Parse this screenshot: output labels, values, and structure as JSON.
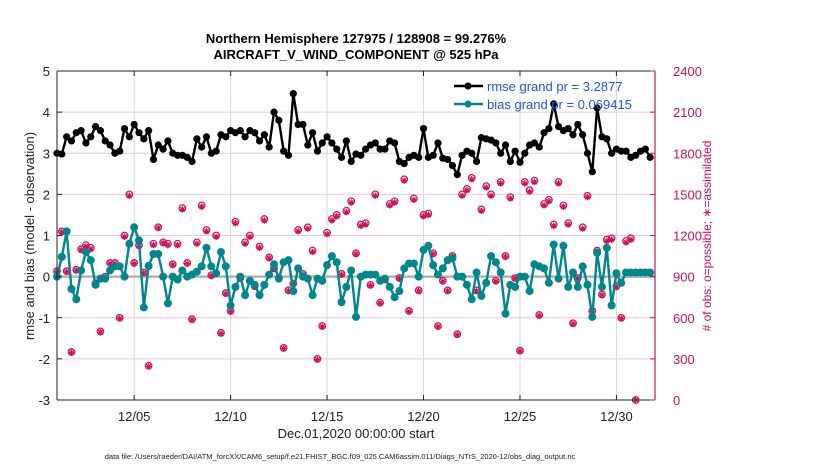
{
  "chart_data": {
    "type": "line",
    "title": "Northern Hemisphere 127975 / 128908 = 99.276%",
    "subtitle": "AIRCRAFT_V_WIND_COMPONENT @ 525 hPa",
    "xlabel": "Dec.01,2020 00:00:00 start",
    "ylabel_left": "rmse and bias (model - observation)",
    "ylabel_right": "# of obs: o=possible; ∗=assimilated",
    "footer": "data file: /Users/raeder/DAI/ATM_forcXX/CAM6_setup/f.e21.FHIST_BGC.f09_025.CAM6assim.011/Diags_NTrS_2020-12/obs_diag_output.nc",
    "x_unit": "days since Dec.01,2020 00:00",
    "x_step_days": 0.25,
    "x_start_days": 0.0,
    "xlim": [
      0.0,
      31.0
    ],
    "x_ticks": [
      {
        "value": 4,
        "label": "12/05"
      },
      {
        "value": 9,
        "label": "12/10"
      },
      {
        "value": 14,
        "label": "12/15"
      },
      {
        "value": 19,
        "label": "12/20"
      },
      {
        "value": 24,
        "label": "12/25"
      },
      {
        "value": 29,
        "label": "12/30"
      }
    ],
    "ylim_left": [
      -3,
      5
    ],
    "y_ticks_left": [
      "-3",
      "-2",
      "-1",
      "0",
      "1",
      "2",
      "3",
      "4",
      "5"
    ],
    "ylim_right": [
      0,
      2400
    ],
    "y_ticks_right": [
      "0",
      "300",
      "600",
      "900",
      "1200",
      "1500",
      "1800",
      "2100",
      "2400"
    ],
    "grid": true,
    "legend_placement": "top-right",
    "legend": [
      {
        "name": "rmse grand pr = 3.2877",
        "color": "#000000"
      },
      {
        "name": "bias grand pr = 0.069415",
        "color": "#00868b"
      }
    ],
    "colors": {
      "rmse": "#000000",
      "bias": "#00868b",
      "obs": "#d0105a",
      "zero_line": "#b3b3b3",
      "grid_vertical": "#d9d9d9",
      "grid_horizontal": "#f2c6d6",
      "legend_text": "#1a55e8"
    },
    "series": [
      {
        "name": "rmse",
        "axis": "left",
        "values": [
          3.0,
          2.98,
          3.4,
          3.3,
          3.5,
          3.55,
          3.25,
          3.4,
          3.65,
          3.55,
          3.3,
          3.2,
          3.0,
          3.05,
          3.6,
          3.4,
          3.7,
          3.5,
          3.35,
          3.55,
          2.85,
          3.2,
          3.1,
          3.3,
          3.0,
          2.95,
          2.95,
          2.9,
          2.8,
          3.35,
          3.15,
          3.4,
          3.0,
          3.05,
          3.45,
          3.4,
          3.55,
          3.5,
          3.55,
          3.4,
          3.55,
          3.5,
          3.3,
          3.45,
          3.15,
          4.0,
          3.8,
          3.05,
          2.95,
          4.45,
          3.7,
          3.7,
          3.2,
          3.5,
          3.05,
          3.25,
          3.4,
          3.25,
          3.1,
          2.9,
          3.3,
          2.8,
          2.98,
          2.95,
          3.1,
          3.2,
          3.25,
          3.1,
          3.1,
          3.3,
          3.25,
          2.8,
          2.75,
          2.9,
          2.95,
          2.9,
          3.6,
          2.9,
          2.95,
          3.25,
          2.88,
          2.85,
          2.7,
          2.48,
          2.95,
          3.05,
          3.0,
          2.8,
          3.38,
          3.35,
          3.32,
          3.25,
          3.0,
          3.2,
          2.8,
          3.05,
          2.78,
          3.0,
          3.2,
          3.25,
          3.15,
          3.5,
          3.6,
          4.2,
          3.65,
          3.55,
          3.6,
          3.45,
          3.7,
          3.45,
          3.0,
          2.55,
          4.1,
          3.4,
          3.35,
          3.0,
          3.1,
          3.05,
          3.05,
          2.9,
          2.95,
          3.05,
          3.1,
          2.9
        ]
      },
      {
        "name": "bias",
        "axis": "left",
        "values": [
          0.0,
          0.48,
          1.1,
          -0.3,
          -0.55,
          0.15,
          0.6,
          0.4,
          -0.2,
          -0.05,
          -0.05,
          0.15,
          0.25,
          0.25,
          0.0,
          0.8,
          1.2,
          0.88,
          -0.75,
          0.26,
          0.55,
          0.55,
          0.0,
          -0.65,
          0.0,
          -0.07,
          0.15,
          0.0,
          0.05,
          0.12,
          0.25,
          0.7,
          0.25,
          0.08,
          0.6,
          0.25,
          -0.7,
          -0.25,
          0.0,
          -0.45,
          -0.1,
          -0.2,
          -0.45,
          -0.2,
          0.05,
          0.3,
          -0.05,
          0.35,
          0.4,
          -0.35,
          0.2,
          0.0,
          -0.05,
          -0.45,
          -0.05,
          -0.1,
          0.28,
          0.5,
          0.35,
          -0.62,
          -0.25,
          0.15,
          -0.98,
          0.0,
          0.05,
          0.05,
          0.05,
          -0.1,
          -0.05,
          -0.25,
          -0.5,
          -0.35,
          0.2,
          0.32,
          0.32,
          0.0,
          0.65,
          0.75,
          0.28,
          0.05,
          0.2,
          0.4,
          0.45,
          0.0,
          0.0,
          -0.2,
          -0.55,
          0.1,
          -0.47,
          -0.15,
          0.5,
          0.35,
          0.1,
          -0.9,
          -0.2,
          -0.25,
          0.0,
          0.0,
          -0.35,
          0.3,
          0.25,
          0.2,
          -0.15,
          0.78,
          -0.05,
          0.75,
          -0.25,
          0.1,
          -0.25,
          0.25,
          -0.2,
          -0.98,
          0.58,
          -0.25,
          0.7,
          -0.7,
          0.08,
          -0.15,
          0.1,
          0.1,
          0.1,
          0.1,
          0.1,
          0.1
        ]
      }
    ],
    "obs_possible": {
      "axis": "right",
      "values": [
        940,
        1230,
        940,
        350,
        950,
        1100,
        1130,
        1110,
        850,
        500,
        900,
        1000,
        1000,
        600,
        1200,
        1500,
        1000,
        1130,
        930,
        250,
        1140,
        1260,
        1150,
        1140,
        990,
        1140,
        1400,
        1000,
        590,
        1150,
        1420,
        1240,
        910,
        1200,
        490,
        780,
        650,
        1300,
        890,
        1150,
        1200,
        830,
        1120,
        1320,
        1040,
        960,
        890,
        380,
        800,
        850,
        1240,
        920,
        1260,
        1090,
        300,
        540,
        1220,
        1320,
        1350,
        920,
        1380,
        1450,
        1070,
        1280,
        1290,
        840,
        1500,
        710,
        880,
        1430,
        1450,
        890,
        1610,
        650,
        1470,
        800,
        1350,
        1360,
        1070,
        540,
        870,
        800,
        1050,
        480,
        1500,
        1540,
        1620,
        800,
        1390,
        1560,
        1500,
        870,
        1590,
        1050,
        1480,
        890,
        360,
        1590,
        1530,
        1600,
        620,
        1430,
        1460,
        1280,
        1590,
        1420,
        1290,
        560,
        890,
        1260,
        1490,
        650,
        1090,
        770,
        1170,
        1180,
        830,
        600,
        1160,
        1180,
        0
      ]
    },
    "obs_assimilated": {
      "axis": "right",
      "values": [
        935,
        1225,
        935,
        345,
        945,
        1095,
        1120,
        1100,
        845,
        495,
        895,
        995,
        995,
        595,
        1190,
        1490,
        995,
        1120,
        925,
        245,
        1130,
        1255,
        1145,
        1130,
        985,
        1130,
        1390,
        995,
        585,
        1140,
        1410,
        1230,
        905,
        1190,
        485,
        775,
        645,
        1290,
        885,
        1140,
        1190,
        825,
        1110,
        1310,
        1035,
        955,
        885,
        375,
        795,
        845,
        1230,
        915,
        1250,
        1080,
        295,
        535,
        1210,
        1310,
        1340,
        915,
        1370,
        1440,
        1065,
        1270,
        1280,
        835,
        1490,
        705,
        875,
        1420,
        1440,
        885,
        1600,
        645,
        1460,
        795,
        1340,
        1350,
        1065,
        535,
        865,
        795,
        1045,
        475,
        1490,
        1530,
        1610,
        795,
        1380,
        1550,
        1490,
        865,
        1580,
        1045,
        1470,
        885,
        355,
        1580,
        1520,
        1590,
        615,
        1420,
        1450,
        1270,
        1580,
        1410,
        1280,
        555,
        885,
        1250,
        1480,
        645,
        1085,
        765,
        1160,
        1170,
        825,
        595,
        1150,
        1170,
        0
      ]
    }
  }
}
